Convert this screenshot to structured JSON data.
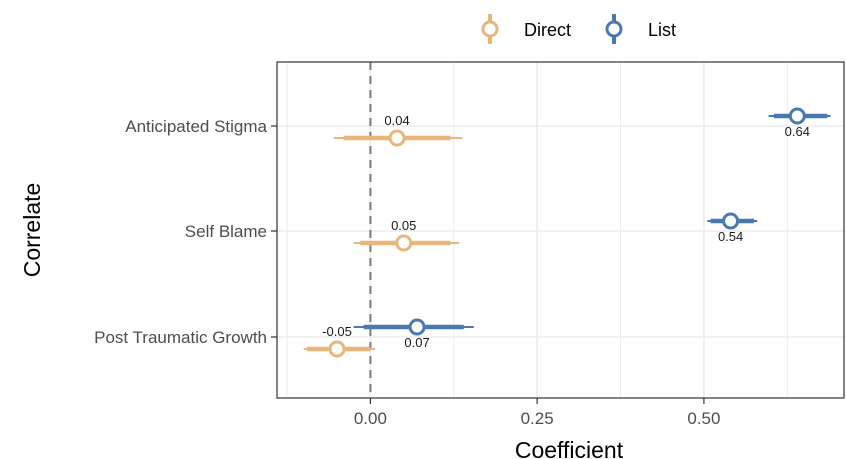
{
  "chart_data": {
    "type": "dot-whisker",
    "xlabel": "Coefficient",
    "ylabel": "Correlate",
    "x_ticks": [
      "0.00",
      "0.25",
      "0.50"
    ],
    "x_tick_values": [
      0.0,
      0.25,
      0.5
    ],
    "xlim": [
      -0.14,
      0.71
    ],
    "reference_line": 0.0,
    "grid": true,
    "legend_position": "top",
    "categories": [
      "Anticipated Stigma",
      "Self Blame",
      "Post Traumatic Growth"
    ],
    "series": [
      {
        "name": "Direct",
        "color": "#E8B57A",
        "points": [
          {
            "category": "Anticipated Stigma",
            "estimate": 0.04,
            "label": "0.04",
            "ci90": [
              -0.04,
              0.12
            ],
            "ci95": [
              -0.055,
              0.138
            ]
          },
          {
            "category": "Self Blame",
            "estimate": 0.05,
            "label": "0.05",
            "ci90": [
              -0.015,
              0.12
            ],
            "ci95": [
              -0.025,
              0.133
            ]
          },
          {
            "category": "Post Traumatic Growth",
            "estimate": -0.05,
            "label": "-0.05",
            "ci90": [
              -0.095,
              0.0
            ],
            "ci95": [
              -0.1,
              0.007
            ]
          }
        ]
      },
      {
        "name": "List",
        "color": "#4A78B0",
        "points": [
          {
            "category": "Anticipated Stigma",
            "estimate": 0.64,
            "label": "0.64",
            "ci90": [
              0.605,
              0.685
            ],
            "ci95": [
              0.597,
              0.69
            ]
          },
          {
            "category": "Self Blame",
            "estimate": 0.54,
            "label": "0.54",
            "ci90": [
              0.51,
              0.575
            ],
            "ci95": [
              0.505,
              0.58
            ]
          },
          {
            "category": "Post Traumatic Growth",
            "estimate": 0.07,
            "label": "0.07",
            "ci90": [
              -0.01,
              0.14
            ],
            "ci95": [
              -0.025,
              0.155
            ]
          }
        ]
      }
    ]
  }
}
